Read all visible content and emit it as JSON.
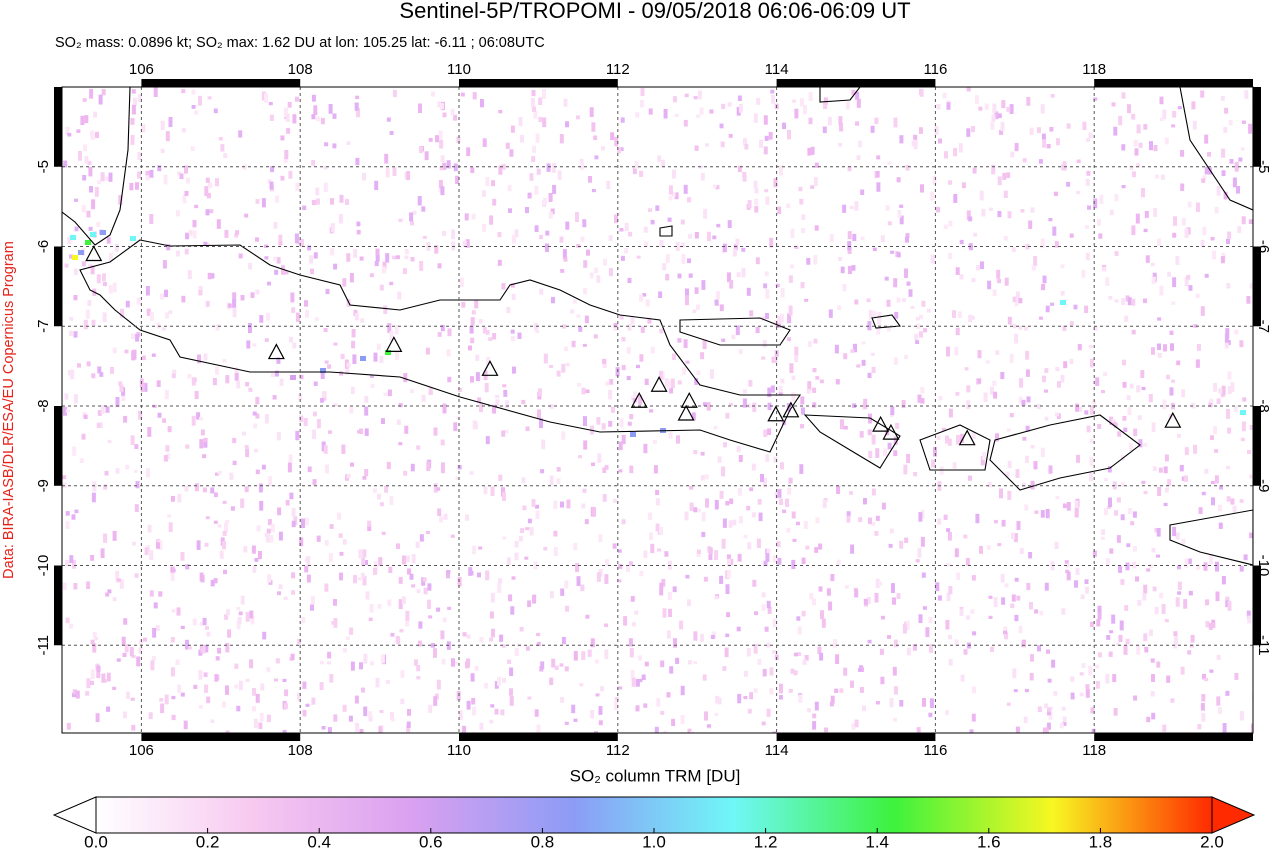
{
  "chart_data": {
    "type": "map",
    "title": "Sentinel-5P/TROPOMI - 09/05/2018 06:06-06:09 UT",
    "subtitle": "SO₂ mass: 0.0896 kt; SO₂ max: 1.62 DU at lon: 105.25 lat: -6.11 ; 06:08UTC",
    "credit": "Data: BIRA-IASB/DLR/ESA/EU Copernicus Program",
    "xlim": [
      105.0,
      120.0
    ],
    "ylim": [
      -12.1,
      -4.0
    ],
    "xticks": [
      106,
      108,
      110,
      112,
      114,
      116,
      118
    ],
    "yticks": [
      -5,
      -6,
      -7,
      -8,
      -9,
      -10,
      -11
    ],
    "grid": true,
    "volcanoes": {
      "lon": [
        105.4,
        107.7,
        109.18,
        110.39,
        112.27,
        112.52,
        112.9,
        112.86,
        113.99,
        114.18,
        115.31,
        115.44,
        116.4,
        118.99
      ],
      "lat": [
        -6.1,
        -7.33,
        -7.24,
        -7.54,
        -7.94,
        -7.74,
        -7.94,
        -8.1,
        -8.11,
        -8.06,
        -8.24,
        -8.34,
        -8.41,
        -8.19
      ]
    },
    "colorbar": {
      "label": "SO₂ column TRM [DU]",
      "lim": [
        0,
        2
      ],
      "ticks": [
        {
          "value": 0,
          "label": "0.0"
        },
        0.2,
        0.4,
        0.6,
        0.8,
        {
          "value": 1,
          "label": "1.0"
        },
        1.2,
        1.4,
        1.6,
        1.8,
        {
          "value": 2,
          "label": "2.0"
        }
      ],
      "colors": [
        "#ffffff",
        "#f7c8f0",
        "#d9a0f0",
        "#8c9cf5",
        "#6ff7f7",
        "#3df23d",
        "#f7f722",
        "#ff2a00"
      ]
    }
  }
}
